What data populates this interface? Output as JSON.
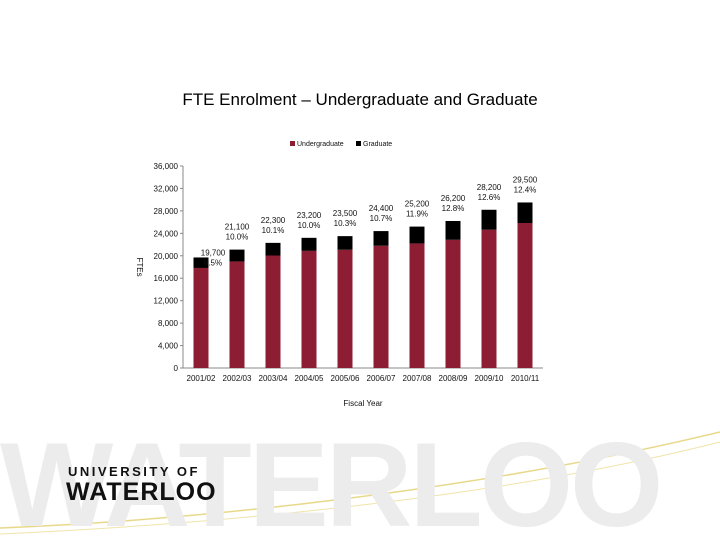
{
  "slide": {
    "title": "FTE  Enrolment – Undergraduate and Graduate",
    "logo_line1": "UNIVERSITY OF",
    "logo_line2": "WATERLOO",
    "watermark": "WATERLOO"
  },
  "chart_data": {
    "type": "bar",
    "stacked": true,
    "categories": [
      "2001/02",
      "2002/03",
      "2003/04",
      "2004/05",
      "2005/06",
      "2006/07",
      "2007/08",
      "2008/09",
      "2009/10",
      "2010/11"
    ],
    "series": [
      {
        "name": "Undergraduate",
        "color": "#8c1d32",
        "values": [
          17830,
          18990,
          20050,
          20880,
          21080,
          21790,
          22200,
          22850,
          24650,
          25840
        ]
      },
      {
        "name": "Graduate",
        "color": "#000000",
        "values": [
          1870,
          2110,
          2250,
          2320,
          2420,
          2610,
          3000,
          3350,
          3550,
          3660
        ]
      }
    ],
    "totals_labels": [
      "19,700",
      "21,100",
      "22,300",
      "23,200",
      "23,500",
      "24,400",
      "25,200",
      "26,200",
      "28,200",
      "29,500"
    ],
    "pct_labels": [
      "9.5%",
      "10.0%",
      "10.1%",
      "10.0%",
      "10.3%",
      "10.7%",
      "11.9%",
      "12.8%",
      "12.6%",
      "12.4%"
    ],
    "ylabel": "FTEs",
    "xlabel": "Fiscal Year",
    "ylim": [
      0,
      36000
    ],
    "yticks": [
      "0",
      "4,000",
      "8,000",
      "12,000",
      "16,000",
      "20,000",
      "24,000",
      "28,000",
      "32,000",
      "36,000"
    ],
    "legend_position": "top"
  }
}
